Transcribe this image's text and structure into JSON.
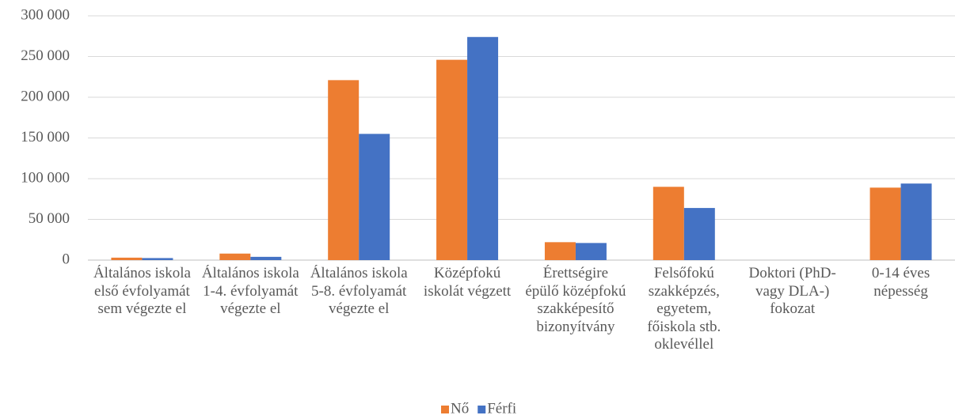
{
  "chart_data": {
    "type": "bar",
    "categories": [
      "Általános iskola első évfolyamát sem végezte el",
      "Általános iskola 1-4. évfolyamát végezte el",
      "Általános iskola 5-8. évfolyamát végezte el",
      "Középfokú iskolát végzett",
      "Érettségire épülő középfokú szakképesítő bizonyítvány",
      "Felsőfokú szakképzés, egyetem, főiskola stb. oklevéllel",
      "Doktori (PhD- vagy DLA-) fokozat",
      "0-14 éves népesség"
    ],
    "series": [
      {
        "name": "Nő",
        "color": "#ed7d31",
        "values": [
          3000,
          8000,
          221000,
          246000,
          22000,
          90000,
          0,
          89000
        ]
      },
      {
        "name": "Férfi",
        "color": "#4472c4",
        "values": [
          2500,
          4000,
          155000,
          274000,
          21000,
          64000,
          0,
          94000
        ]
      }
    ],
    "ylim": [
      0,
      300000
    ],
    "yticks": [
      0,
      {
        "value": 50000,
        "label": "50 000"
      },
      {
        "value": 100000,
        "label": "100 000"
      },
      {
        "value": 150000,
        "label": "150 000"
      },
      {
        "value": 200000,
        "label": "200 000"
      },
      {
        "value": 250000,
        "label": "250 000"
      },
      {
        "value": 300000,
        "label": "300 000"
      }
    ],
    "grid": true,
    "legend": "bottom"
  }
}
